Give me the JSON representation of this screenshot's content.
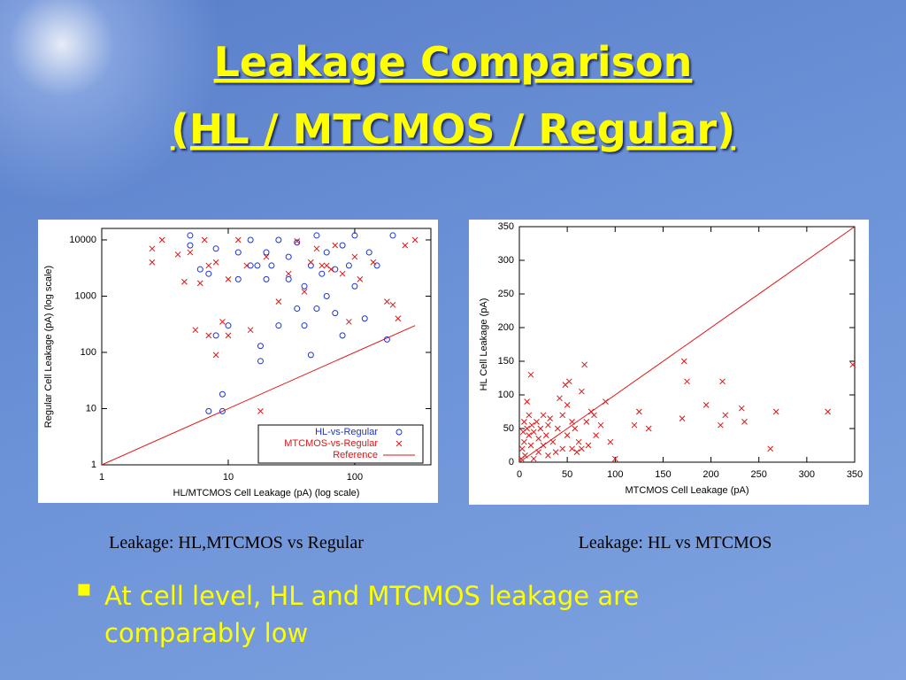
{
  "slide": {
    "title": [
      "Leakage Comparison",
      "(HL / MTCMOS / Regular)"
    ],
    "bullet": "At cell level, HL and MTCMOS leakage are comparably low"
  },
  "chart_data": [
    {
      "type": "scatter",
      "caption": "Leakage: HL,MTCMOS vs Regular",
      "x_label": "HL/MTCMOS Cell Leakage (pA) (log scale)",
      "y_label": "Regular Cell Leakage (pA) (log scale)",
      "xscale": "log",
      "yscale": "log",
      "xlim": [
        1,
        400
      ],
      "ylim": [
        1,
        16000
      ],
      "xticks": [
        1,
        10,
        100
      ],
      "yticks": [
        1,
        10,
        100,
        1000,
        10000
      ],
      "grid": false,
      "legend": "lower right",
      "series": [
        {
          "name": "HL-vs-Regular",
          "color": "#1a33d6",
          "marker": "circle",
          "x": [
            5,
            5,
            6,
            7,
            8,
            8,
            9,
            9,
            7,
            10,
            12,
            12,
            15,
            15,
            17,
            18,
            18,
            20,
            20,
            22,
            25,
            25,
            30,
            30,
            35,
            35,
            40,
            40,
            45,
            45,
            50,
            50,
            55,
            60,
            60,
            70,
            70,
            80,
            80,
            90,
            100,
            100,
            120,
            130,
            150,
            180,
            200
          ],
          "values": [
            8000,
            12000,
            3000,
            2500,
            7000,
            200,
            18,
            9,
            9,
            300,
            6000,
            2000,
            10000,
            3500,
            3500,
            130,
            70,
            6000,
            2000,
            3500,
            300,
            10000,
            5000,
            2000,
            600,
            9000,
            1500,
            300,
            90,
            3500,
            12000,
            600,
            2500,
            6000,
            1000,
            3000,
            500,
            8000,
            200,
            3500,
            1500,
            12000,
            400,
            6000,
            3500,
            170,
            12000
          ]
        },
        {
          "name": "MTCMOS-vs-Regular",
          "color": "#e01414",
          "marker": "x",
          "x": [
            2.5,
            2.5,
            3,
            4,
            4.5,
            5,
            5.5,
            6,
            6.5,
            7,
            7,
            8,
            8,
            9,
            10,
            10,
            12,
            14,
            15,
            18,
            20,
            25,
            30,
            35,
            40,
            45,
            50,
            55,
            60,
            65,
            70,
            80,
            90,
            100,
            110,
            140,
            180,
            200,
            220,
            250,
            300
          ],
          "values": [
            4000,
            7000,
            10000,
            5500,
            1800,
            6000,
            250,
            1700,
            10000,
            200,
            3500,
            90,
            4000,
            350,
            2000,
            200,
            10000,
            3500,
            250,
            9,
            5000,
            800,
            2500,
            9500,
            1200,
            4000,
            7000,
            3500,
            3500,
            3000,
            8000,
            2500,
            350,
            5000,
            2000,
            4000,
            800,
            700,
            400,
            8000,
            10000
          ]
        },
        {
          "name": "Reference",
          "color": "#e01414",
          "marker": "line",
          "x": [
            1,
            300
          ],
          "values": [
            1,
            300
          ]
        }
      ]
    },
    {
      "type": "scatter",
      "caption": "Leakage: HL vs MTCMOS",
      "x_label": "MTCMOS Cell Leakage (pA)",
      "y_label": "HL Cell Leakage (pA)",
      "xlim": [
        0,
        350
      ],
      "ylim": [
        0,
        350
      ],
      "xticks": [
        0,
        50,
        100,
        150,
        200,
        250,
        300,
        350
      ],
      "yticks": [
        0,
        50,
        100,
        150,
        200,
        250,
        300,
        350
      ],
      "grid": false,
      "series": [
        {
          "color": "#e01414",
          "marker": "x",
          "x": [
            2,
            3,
            4,
            5,
            5,
            6,
            8,
            8,
            10,
            10,
            12,
            12,
            13,
            15,
            15,
            18,
            20,
            20,
            22,
            25,
            25,
            28,
            30,
            30,
            32,
            35,
            38,
            40,
            42,
            45,
            45,
            48,
            50,
            50,
            52,
            55,
            55,
            58,
            60,
            62,
            65,
            65,
            68,
            70,
            72,
            75,
            78,
            80,
            85,
            90,
            95,
            100,
            120,
            125,
            135,
            170,
            172,
            175,
            195,
            210,
            212,
            215,
            232,
            235,
            262,
            268,
            322,
            348
          ],
          "values": [
            5,
            20,
            45,
            60,
            30,
            10,
            50,
            90,
            40,
            70,
            25,
            130,
            55,
            45,
            5,
            60,
            35,
            15,
            50,
            70,
            25,
            40,
            55,
            10,
            65,
            30,
            15,
            50,
            95,
            20,
            70,
            115,
            40,
            85,
            120,
            60,
            20,
            50,
            15,
            30,
            105,
            20,
            145,
            60,
            25,
            75,
            70,
            40,
            55,
            90,
            30,
            5,
            55,
            75,
            50,
            65,
            150,
            120,
            85,
            55,
            120,
            70,
            80,
            60,
            20,
            75,
            75,
            145
          ]
        },
        {
          "color": "#e01414",
          "marker": "line",
          "x": [
            0,
            350
          ],
          "values": [
            0,
            350
          ]
        }
      ]
    }
  ]
}
